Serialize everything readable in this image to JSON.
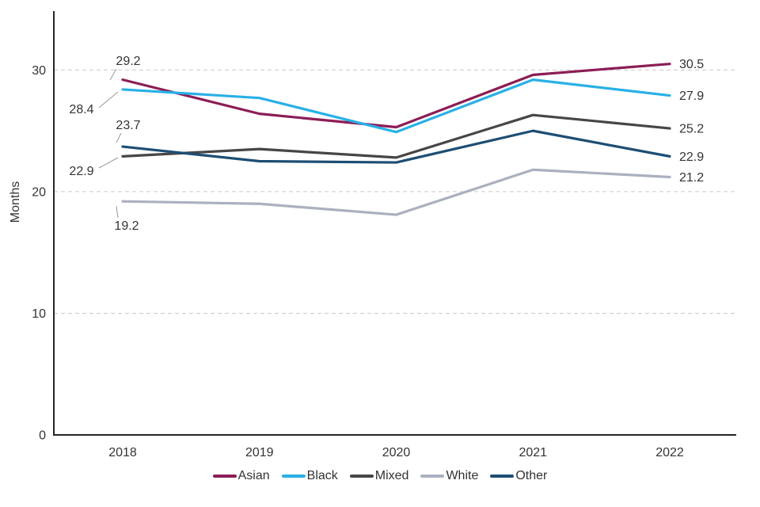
{
  "chart_data": {
    "type": "line",
    "title": "",
    "xlabel": "",
    "ylabel": "Months",
    "x": [
      2018,
      2019,
      2020,
      2021,
      2022
    ],
    "y_ticks": [
      0,
      10,
      20,
      30
    ],
    "ylim": [
      0,
      34.8
    ],
    "grid": "horizontal-dashed",
    "legend_position": "bottom",
    "series": [
      {
        "name": "Asian",
        "color": "#8c1d56",
        "values": [
          29.2,
          26.4,
          25.3,
          29.6,
          30.5
        ]
      },
      {
        "name": "Black",
        "color": "#29b0e6",
        "values": [
          28.4,
          27.7,
          24.9,
          29.2,
          27.9
        ]
      },
      {
        "name": "Mixed",
        "color": "#464646",
        "values": [
          22.9,
          23.5,
          22.8,
          26.3,
          25.2
        ]
      },
      {
        "name": "White",
        "color": "#aab0bf",
        "values": [
          19.2,
          19.0,
          18.1,
          21.8,
          21.2
        ]
      },
      {
        "name": "Other",
        "color": "#1d4e74",
        "values": [
          23.7,
          22.5,
          22.4,
          25.0,
          22.9
        ]
      }
    ],
    "start_labels": [
      {
        "series": "Asian",
        "text": "29.2"
      },
      {
        "series": "Black",
        "text": "28.4"
      },
      {
        "series": "Other",
        "text": "23.7"
      },
      {
        "series": "Mixed",
        "text": "22.9"
      },
      {
        "series": "White",
        "text": "19.2"
      }
    ],
    "end_labels": [
      {
        "series": "Asian",
        "text": "30.5"
      },
      {
        "series": "Black",
        "text": "27.9"
      },
      {
        "series": "Mixed",
        "text": "25.2"
      },
      {
        "series": "Other",
        "text": "22.9"
      },
      {
        "series": "White",
        "text": "21.2"
      }
    ],
    "colors": {
      "grid": "#c9c9c9",
      "axis": "#262626",
      "tick_text": "#333333",
      "label_text": "#333333",
      "leader_line": "#999999"
    }
  }
}
